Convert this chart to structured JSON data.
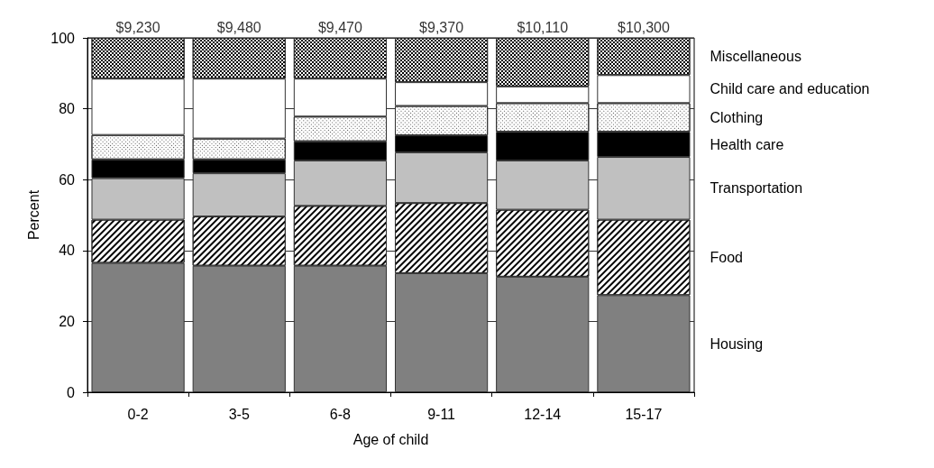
{
  "chart_data": {
    "type": "bar",
    "stacked": true,
    "xlabel": "Age of child",
    "ylabel": "Percent",
    "categories": [
      "0-2",
      "3-5",
      "6-8",
      "9-11",
      "12-14",
      "15-17"
    ],
    "series": [
      {
        "name": "Housing",
        "color": "#808080",
        "values": [
          36.5,
          35.7,
          35.7,
          33.6,
          32.6,
          27.4
        ]
      },
      {
        "name": "Food",
        "color": "#ffffff",
        "values": [
          12.2,
          13.9,
          16.9,
          19.8,
          18.9,
          21.3
        ]
      },
      {
        "name": "Transportation",
        "color": "#c0c0c0",
        "values": [
          11.7,
          12.2,
          12.8,
          14.3,
          13.9,
          17.7
        ]
      },
      {
        "name": "Health care",
        "color": "#000000",
        "values": [
          5.3,
          3.9,
          5.4,
          4.8,
          8.1,
          7.1
        ]
      },
      {
        "name": "Clothing",
        "color": "#ffffff",
        "values": [
          6.9,
          5.9,
          7.0,
          8.3,
          8.1,
          8.1
        ]
      },
      {
        "name": "Child care and education",
        "color": "#ffffff",
        "values": [
          15.9,
          16.9,
          10.7,
          6.7,
          4.7,
          7.9
        ]
      },
      {
        "name": "Miscellaneous",
        "color": "#ffffff",
        "values": [
          11.5,
          11.5,
          11.5,
          12.5,
          13.7,
          10.5
        ]
      }
    ],
    "annotations": [
      {
        "text": "$9,230",
        "x": "0-2",
        "y": 100
      },
      {
        "text": "$9,480",
        "x": "3-5",
        "y": 100
      },
      {
        "text": "$9,470",
        "x": "6-8",
        "y": 100
      },
      {
        "text": "$9,370",
        "x": "9-11",
        "y": 100
      },
      {
        "text": "$10,110",
        "x": "12-14",
        "y": 100
      },
      {
        "text": "$10,300",
        "x": "15-17",
        "y": 100
      }
    ],
    "ylim": [
      0,
      100
    ],
    "yticks": [
      0,
      20,
      40,
      60,
      80,
      100
    ],
    "grid": "y",
    "legend": "right"
  }
}
